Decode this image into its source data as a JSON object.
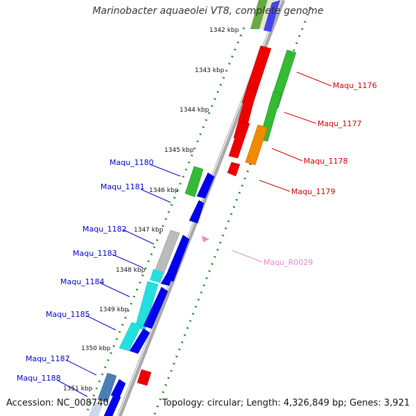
{
  "title": "Marinobacter aquaeolei VT8, complete genome",
  "footer": {
    "accession": "Accession: NC_008740",
    "summary": "Topology: circular; Length: 4,326,849 bp; Genes: 3,921"
  },
  "kbp_ticks": [
    "1342 kbp",
    "1343 kbp",
    "1344 kbp",
    "1345 kbp",
    "1346 kbp",
    "1347 kbp",
    "1348 kbp",
    "1349 kbp",
    "1350 kbp",
    "1351 kbp"
  ],
  "genes_right": [
    {
      "label": "Maqu_1176",
      "color": "#cc0000"
    },
    {
      "label": "Maqu_1177",
      "color": "#cc0000"
    },
    {
      "label": "Maqu_1178",
      "color": "#cc0000"
    },
    {
      "label": "Maqu_1179",
      "color": "#cc0000"
    },
    {
      "label": "Maqu_R0029",
      "color": "#ee88cc"
    }
  ],
  "genes_left": [
    {
      "label": "Maqu_1180",
      "color": "#0000cc"
    },
    {
      "label": "Maqu_1181",
      "color": "#0000cc"
    },
    {
      "label": "Maqu_1182",
      "color": "#0000cc"
    },
    {
      "label": "Maqu_1183",
      "color": "#0000cc"
    },
    {
      "label": "Maqu_1184",
      "color": "#0000cc"
    },
    {
      "label": "Maqu_1185",
      "color": "#0000cc"
    },
    {
      "label": "Maqu_1187",
      "color": "#0000cc"
    },
    {
      "label": "Maqu_1188",
      "color": "#0000cc"
    }
  ],
  "colors": {
    "forward_cds": "#e00000",
    "reverse_cds": "#0000e0",
    "orange_cds": "#f08a00",
    "green_track": "#33bb33",
    "cyan_track": "#22e0e0",
    "grey_track": "#bbbbbb",
    "steel_track": "#4a7fb5",
    "tick_green": "#228822",
    "backbone": "#999999"
  }
}
